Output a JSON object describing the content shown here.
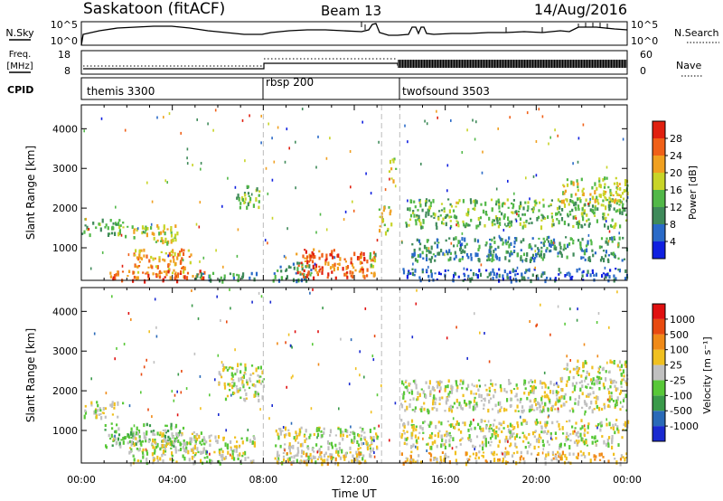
{
  "header": {
    "station": "Saskatoon (fitACF)",
    "beam": "Beam 13",
    "date": "14/Aug/2016"
  },
  "top_panels": {
    "nsky_label": "N.Sky",
    "nsky_ticks": [
      "10^5",
      "10^0"
    ],
    "nsearch_label": "N.Search",
    "nsearch_ticks": [
      "10^5",
      "10^0"
    ],
    "freq_label_1": "Freq.",
    "freq_label_2": "[MHz]",
    "freq_ticks": [
      "18",
      "8"
    ],
    "nave_label": "Nave",
    "nave_ticks": [
      "60",
      "0"
    ],
    "cpid_label": "CPID",
    "cpid_modes": [
      {
        "name": "themis 3300",
        "start_hour": 0
      },
      {
        "name": "rbsp 200",
        "start_hour": 8
      },
      {
        "name": "twofsound 3503",
        "start_hour": 14
      }
    ]
  },
  "chart_data": [
    {
      "type": "heatmap",
      "quantity": "Power",
      "ylabel": "Slant Range [km]",
      "ylim": [
        180,
        4600
      ],
      "yticks": [
        1000,
        2000,
        3000,
        4000
      ],
      "xlim_hours": [
        0,
        24
      ],
      "colorbar": {
        "label": "Power [dB]",
        "ticks": [
          "4",
          "8",
          "12",
          "16",
          "20",
          "24",
          "28"
        ],
        "colors": [
          "#1020e0",
          "#2a6ac8",
          "#3f8a5a",
          "#52b848",
          "#c8d428",
          "#f0a020",
          "#f06018",
          "#e02010"
        ]
      },
      "echo_regions": [
        {
          "x": [
            0.0,
            1.8
          ],
          "y": [
            1350,
            1750
          ],
          "level": 3
        },
        {
          "x": [
            1.8,
            4.2
          ],
          "y": [
            1150,
            1600
          ],
          "level": 4
        },
        {
          "x": [
            2.2,
            4.8
          ],
          "y": [
            300,
            1000
          ],
          "level": 5
        },
        {
          "x": [
            1.2,
            5.5
          ],
          "y": [
            200,
            450
          ],
          "level": 6
        },
        {
          "x": [
            5.0,
            7.8
          ],
          "y": [
            200,
            400
          ],
          "level": 2
        },
        {
          "x": [
            6.8,
            7.8
          ],
          "y": [
            2000,
            2600
          ],
          "level": 3
        },
        {
          "x": [
            8.4,
            10.2
          ],
          "y": [
            200,
            650
          ],
          "level": 2
        },
        {
          "x": [
            9.4,
            12.9
          ],
          "y": [
            250,
            1000
          ],
          "level": 6
        },
        {
          "x": [
            12.6,
            13.0
          ],
          "y": [
            500,
            900
          ],
          "level": 3
        },
        {
          "x": [
            13.0,
            13.6
          ],
          "y": [
            1400,
            2100
          ],
          "level": 4
        },
        {
          "x": [
            13.5,
            13.8
          ],
          "y": [
            2700,
            3300
          ],
          "level": 4
        },
        {
          "x": [
            14.2,
            24.0
          ],
          "y": [
            1550,
            2250
          ],
          "level": 3
        },
        {
          "x": [
            14.5,
            24.0
          ],
          "y": [
            700,
            1300
          ],
          "level": 2
        },
        {
          "x": [
            14.0,
            24.0
          ],
          "y": [
            200,
            500
          ],
          "level": 1
        },
        {
          "x": [
            21.0,
            24.0
          ],
          "y": [
            2200,
            2800
          ],
          "level": 4
        }
      ]
    },
    {
      "type": "heatmap",
      "quantity": "Velocity",
      "ylabel": "Slant Range [km]",
      "ylim": [
        180,
        4600
      ],
      "yticks": [
        1000,
        2000,
        3000,
        4000
      ],
      "xlim_hours": [
        0,
        24
      ],
      "colorbar": {
        "label": "Velocity [m s⁻¹]",
        "ticks": [
          "1000",
          "500",
          "100",
          "25",
          "-25",
          "-100",
          "-500",
          "-1000"
        ],
        "colors": [
          "#1a2ad0",
          "#2a6ab8",
          "#3a9a4a",
          "#58c838",
          "#c0c0c0",
          "#f0c020",
          "#f08a18",
          "#e84a10",
          "#e01010"
        ]
      },
      "echo_regions": [
        {
          "x": [
            0.0,
            1.8
          ],
          "y": [
            1350,
            1750
          ],
          "level": 4
        },
        {
          "x": [
            1.0,
            4.5
          ],
          "y": [
            600,
            1200
          ],
          "level": 3
        },
        {
          "x": [
            2.0,
            5.5
          ],
          "y": [
            200,
            1000
          ],
          "level": 4
        },
        {
          "x": [
            4.5,
            7.6
          ],
          "y": [
            200,
            900
          ],
          "level": 4
        },
        {
          "x": [
            6.0,
            8.0
          ],
          "y": [
            1800,
            2700
          ],
          "level": 4
        },
        {
          "x": [
            8.4,
            13.0
          ],
          "y": [
            200,
            1100
          ],
          "level": 4
        },
        {
          "x": [
            9.0,
            12.5
          ],
          "y": [
            200,
            500
          ],
          "level": 5
        },
        {
          "x": [
            14.0,
            24.0
          ],
          "y": [
            1500,
            2300
          ],
          "level": 4
        },
        {
          "x": [
            14.0,
            24.0
          ],
          "y": [
            600,
            1300
          ],
          "level": 4
        },
        {
          "x": [
            14.0,
            24.0
          ],
          "y": [
            200,
            500
          ],
          "level": 5
        },
        {
          "x": [
            21.0,
            24.0
          ],
          "y": [
            2200,
            2800
          ],
          "level": 4
        }
      ]
    }
  ],
  "x_axis": {
    "label": "Time UT",
    "ticks": [
      "00:00",
      "04:00",
      "08:00",
      "12:00",
      "16:00",
      "20:00",
      "00:00"
    ]
  }
}
